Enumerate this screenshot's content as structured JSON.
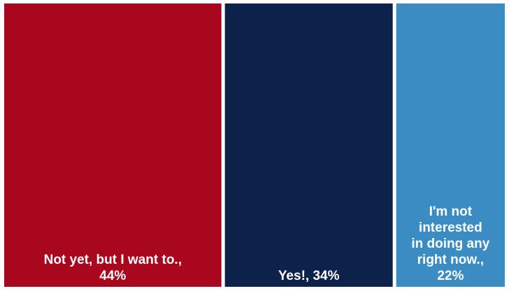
{
  "chart_data": {
    "type": "treemap",
    "title": "",
    "tiles": [
      {
        "category": "Not yet, but I want to.",
        "value": 44,
        "label": "Not yet, but I want to., 44%",
        "label_lines": [
          "Not yet, but I want to.,",
          "44%"
        ],
        "color": "#A8071E"
      },
      {
        "category": "Yes!",
        "value": 34,
        "label": "Yes!, 34%",
        "label_lines": [
          "Yes!, 34%"
        ],
        "color": "#0C224A"
      },
      {
        "category": "I'm not interested in doing any right now.",
        "value": 22,
        "label": "I'm not interested in doing any right now., 22%",
        "label_lines": [
          "I'm not",
          "interested",
          "in doing any",
          "right now.,",
          "22%"
        ],
        "color": "#3A8CC2"
      }
    ],
    "legend": "none",
    "grid": false
  }
}
